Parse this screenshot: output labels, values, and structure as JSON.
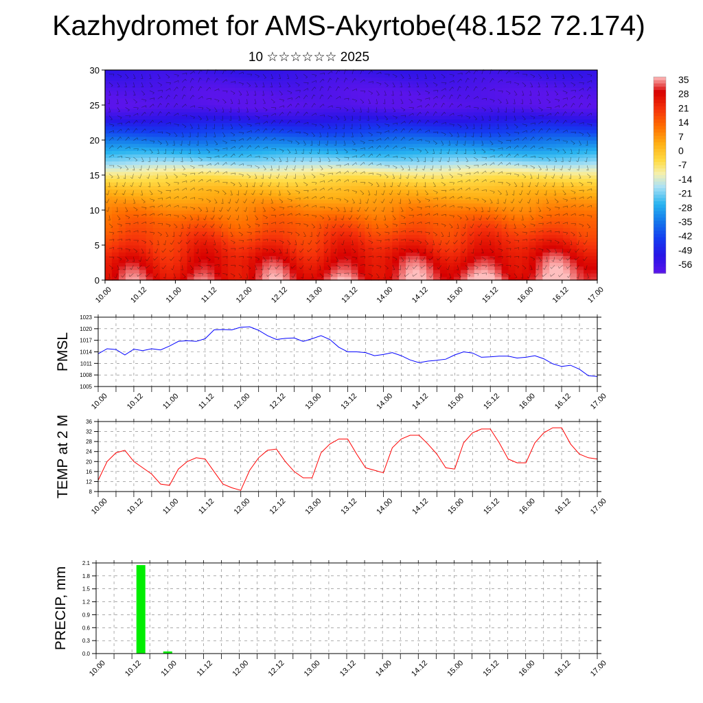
{
  "title": "Kazhydromet for AMS-Akyrtobe(48.152 72.174)",
  "subtitle": "10 ☆☆☆☆☆☆ 2025",
  "x_tick_labels": [
    "10.00",
    "10.12",
    "11.00",
    "11.12",
    "12.00",
    "12.12",
    "13.00",
    "13.12",
    "14.00",
    "14.12",
    "15.00",
    "15.12",
    "16.00",
    "16.12",
    "17.00"
  ],
  "colorbar": {
    "labels": [
      "35",
      "28",
      "21",
      "14",
      "7",
      "0",
      "-7",
      "-14",
      "-21",
      "-28",
      "-35",
      "-42",
      "-49",
      "-56"
    ],
    "colors": [
      "#ffc6c6",
      "#ee2020",
      "#d50000",
      "#ff4a00",
      "#ff9a00",
      "#ffd21e",
      "#fff3a0",
      "#b5e6f5",
      "#40b8f0",
      "#1878e8",
      "#0a3cf0",
      "#1e0fe6",
      "#6a1ee8",
      "#8a30f0"
    ]
  },
  "chart_data": [
    {
      "type": "heatmap",
      "name": "vertical temperature/wind section",
      "x_tick_labels": [
        "10.00",
        "10.12",
        "11.00",
        "11.12",
        "12.00",
        "12.12",
        "13.00",
        "13.12",
        "14.00",
        "14.12",
        "15.00",
        "15.12",
        "16.00",
        "16.12",
        "17.00"
      ],
      "ylim": [
        0,
        30
      ],
      "y_ticks": [
        "0",
        "5",
        "10",
        "15",
        "20",
        "25",
        "30"
      ],
      "level_temps": [
        [
          0,
          28
        ],
        [
          3,
          24
        ],
        [
          6,
          18
        ],
        [
          9,
          12
        ],
        [
          11,
          7
        ],
        [
          13,
          2
        ],
        [
          15,
          -6
        ],
        [
          17,
          -18
        ],
        [
          19,
          -28
        ],
        [
          21,
          -38
        ],
        [
          23,
          -48
        ],
        [
          25,
          -56
        ],
        [
          27,
          -55
        ],
        [
          30,
          -50
        ]
      ],
      "colorbar_range": [
        -56,
        35
      ]
    },
    {
      "type": "line",
      "ylabel": "PMSL",
      "y_ticks": [
        "1005",
        "1008",
        "1011",
        "1014",
        "1017",
        "1020",
        "1023"
      ],
      "ylim": [
        1005,
        1023
      ],
      "x": [
        0,
        3,
        6,
        9,
        12,
        15,
        18,
        21,
        24,
        27,
        30,
        33,
        36,
        39,
        42,
        45,
        48,
        51,
        54,
        57,
        60,
        63,
        66,
        69,
        72,
        75,
        78,
        81,
        84,
        87,
        90,
        93,
        96,
        99,
        102,
        105,
        108,
        111,
        114,
        117,
        120,
        123,
        126,
        129,
        132,
        135,
        138,
        141,
        144,
        147,
        150,
        153,
        156,
        159,
        162,
        165,
        168
      ],
      "values": [
        1013.5,
        1014.8,
        1014.6,
        1013.2,
        1014.7,
        1014.3,
        1014.8,
        1014.5,
        1015.5,
        1016.7,
        1016.9,
        1016.7,
        1017.4,
        1019.7,
        1019.8,
        1019.7,
        1020.4,
        1020.5,
        1019.6,
        1018.2,
        1017.2,
        1017.5,
        1017.6,
        1016.7,
        1017.4,
        1018.2,
        1017.2,
        1015.2,
        1014.0,
        1014.0,
        1013.8,
        1013.0,
        1013.3,
        1013.8,
        1013.0,
        1011.9,
        1011.2,
        1011.6,
        1011.8,
        1012.1,
        1013.2,
        1014.0,
        1013.7,
        1012.6,
        1012.7,
        1012.9,
        1012.9,
        1012.4,
        1012.6,
        1013.0,
        1012.2,
        1010.9,
        1010.2,
        1010.5,
        1009.5,
        1007.8,
        1007.6
      ],
      "x_tick_labels": [
        "10.00",
        "10.12",
        "11.00",
        "11.12",
        "12.00",
        "12.12",
        "13.00",
        "13.12",
        "14.00",
        "14.12",
        "15.00",
        "15.12",
        "16.00",
        "16.12",
        "17.00"
      ],
      "color": "#0000ff"
    },
    {
      "type": "line",
      "ylabel": "TEMP at 2 M",
      "y_ticks": [
        "8",
        "12",
        "16",
        "20",
        "24",
        "28",
        "32",
        "36"
      ],
      "ylim": [
        8,
        36
      ],
      "x": [
        0,
        3,
        6,
        9,
        12,
        15,
        18,
        21,
        24,
        27,
        30,
        33,
        36,
        39,
        42,
        45,
        48,
        51,
        54,
        57,
        60,
        63,
        66,
        69,
        72,
        75,
        78,
        81,
        84,
        87,
        90,
        93,
        96,
        99,
        102,
        105,
        108,
        111,
        114,
        117,
        120,
        123,
        126,
        129,
        132,
        135,
        138,
        141,
        144,
        147,
        150,
        153,
        156,
        159,
        162,
        165,
        168
      ],
      "values": [
        12.5,
        20,
        23.5,
        24.5,
        20,
        17.5,
        15,
        11,
        10.5,
        17,
        20,
        21.5,
        21,
        16,
        11,
        9.5,
        8.5,
        16.5,
        21.5,
        24.5,
        25,
        20,
        16,
        13.5,
        13.5,
        23.5,
        27,
        29,
        29,
        23,
        17.5,
        16.5,
        15.5,
        25.5,
        29,
        30.5,
        30.5,
        27,
        23,
        17.5,
        17,
        27.5,
        31.5,
        33,
        33,
        27.5,
        21,
        19.5,
        19.5,
        27.5,
        31.5,
        33.5,
        33.5,
        27,
        23,
        21.5,
        21
      ],
      "x_tick_labels": [
        "10.00",
        "10.12",
        "11.00",
        "11.12",
        "12.00",
        "12.12",
        "13.00",
        "13.12",
        "14.00",
        "14.12",
        "15.00",
        "15.12",
        "16.00",
        "16.12",
        "17.00"
      ],
      "color": "#ff0000"
    },
    {
      "type": "bar",
      "ylabel": "PRECIP, mm",
      "y_ticks": [
        "0.0",
        "0.3",
        "0.6",
        "0.9",
        "1.2",
        "1.5",
        "1.8",
        "2.1"
      ],
      "ylim": [
        0,
        2.1
      ],
      "x": [
        15,
        24
      ],
      "values": [
        2.05,
        0.05
      ],
      "x_tick_labels": [
        "10.00",
        "10.12",
        "11.00",
        "11.12",
        "12.00",
        "12.12",
        "13.00",
        "13.12",
        "14.00",
        "14.12",
        "15.00",
        "15.12",
        "16.00",
        "16.12",
        "17.00"
      ],
      "color": "#00ee00"
    }
  ]
}
